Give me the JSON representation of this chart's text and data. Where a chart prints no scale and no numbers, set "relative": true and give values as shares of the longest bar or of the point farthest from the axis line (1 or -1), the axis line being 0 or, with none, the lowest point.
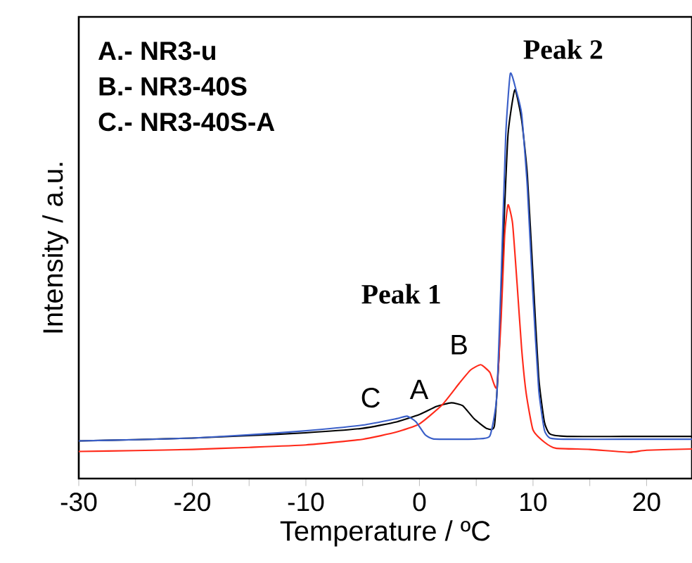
{
  "chart_data": {
    "type": "line",
    "relative": true,
    "xlabel": "Temperature / ºC",
    "ylabel": "Intensity / a.u.",
    "xlim": [
      -30,
      24
    ],
    "xticks": [
      -30,
      {
        "value": -25,
        "label": null
      },
      -20,
      {
        "value": -15,
        "label": null
      },
      -10,
      {
        "value": -5,
        "label": null
      },
      0,
      {
        "value": 5,
        "label": null
      },
      10,
      {
        "value": 15,
        "label": null
      },
      20
    ],
    "annotations": [
      "A.- NR3-u",
      "B.- NR3-40S",
      "C.- NR3-40S-A",
      "Peak 1",
      "Peak 2",
      "A",
      "B",
      "C"
    ],
    "series": [
      {
        "color": "#000000",
        "x": [
          -30,
          -25,
          -20,
          -15,
          -10,
          -5,
          -2,
          0,
          1.5,
          2.8,
          3.8,
          4.8,
          5.9,
          6.6,
          7.0,
          7.4,
          7.8,
          8.4,
          9.0,
          9.5,
          10.0,
          10.5,
          11.0,
          11.5,
          13,
          18,
          24
        ],
        "values": [
          0.093,
          0.096,
          0.1,
          0.106,
          0.113,
          0.124,
          0.14,
          0.158,
          0.178,
          0.187,
          0.18,
          0.148,
          0.124,
          0.13,
          0.3,
          0.6,
          0.85,
          0.96,
          0.885,
          0.75,
          0.5,
          0.25,
          0.14,
          0.11,
          0.104,
          0.104,
          0.104
        ]
      },
      {
        "color": "#ff2a1a",
        "x": [
          -30,
          -25,
          -20,
          -15,
          -10,
          -5,
          -2,
          0,
          2,
          3.5,
          4.5,
          5.4,
          6.2,
          6.8,
          7.2,
          7.5,
          7.8,
          8.2,
          8.6,
          9.0,
          9.4,
          10,
          11,
          12,
          15,
          18.5,
          20,
          24
        ],
        "values": [
          0.067,
          0.069,
          0.072,
          0.077,
          0.083,
          0.097,
          0.115,
          0.135,
          0.182,
          0.235,
          0.268,
          0.281,
          0.262,
          0.225,
          0.4,
          0.6,
          0.676,
          0.63,
          0.48,
          0.32,
          0.21,
          0.12,
          0.09,
          0.075,
          0.072,
          0.065,
          0.07,
          0.073
        ]
      },
      {
        "color": "#3a5fc8",
        "x": [
          -30,
          -25,
          -20,
          -15,
          -10,
          -5,
          -2,
          -1.1,
          -0.3,
          0.5,
          1.2,
          3,
          5,
          6.2,
          6.8,
          7.2,
          7.6,
          8.0,
          8.5,
          9.0,
          9.5,
          10.0,
          10.5,
          11,
          11.5,
          13,
          18,
          24
        ],
        "values": [
          0.093,
          0.096,
          0.1,
          0.108,
          0.118,
          0.132,
          0.148,
          0.154,
          0.14,
          0.108,
          0.098,
          0.097,
          0.098,
          0.105,
          0.2,
          0.5,
          0.85,
          1.0,
          0.96,
          0.9,
          0.72,
          0.45,
          0.22,
          0.12,
          0.1,
          0.097,
          0.097,
          0.097
        ]
      }
    ]
  }
}
